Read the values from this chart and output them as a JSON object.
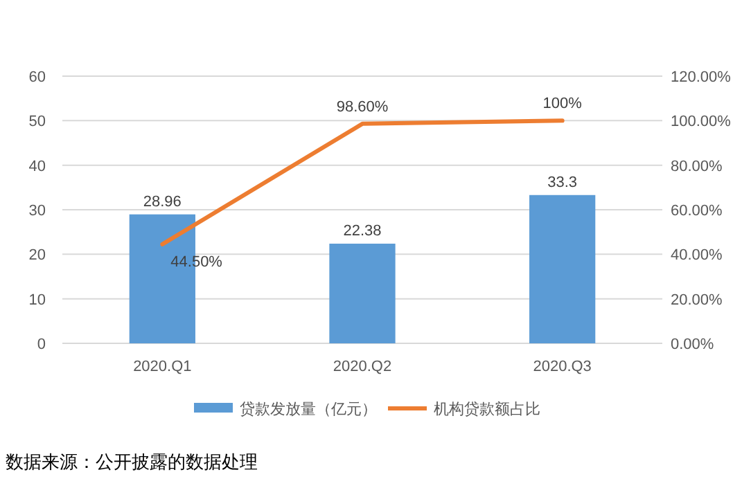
{
  "chart_data": {
    "type": "bar",
    "categories": [
      "2020.Q1",
      "2020.Q2",
      "2020.Q3"
    ],
    "series": [
      {
        "name": "贷款发放量（亿元）",
        "color": "#5b9bd5",
        "values": [
          28.96,
          22.38,
          33.3
        ],
        "value_labels": [
          "28.96",
          "22.38",
          "33.3"
        ]
      },
      {
        "name": "机构贷款额占比",
        "type": "line",
        "axis": "y2",
        "color": "#ed7d31",
        "values": [
          44.5,
          98.6,
          100
        ],
        "value_labels": [
          "44.50%",
          "98.60%",
          "100%"
        ]
      }
    ],
    "ylim": [
      0,
      60
    ],
    "yticks": [
      0,
      10,
      20,
      30,
      40,
      50,
      60
    ],
    "y2lim": [
      0,
      120
    ],
    "y2ticks": [
      {
        "value": 0,
        "label": "0.00%"
      },
      {
        "value": 20,
        "label": "20.00%"
      },
      {
        "value": 40,
        "label": "40.00%"
      },
      {
        "value": 60,
        "label": "60.00%"
      },
      {
        "value": 80,
        "label": "80.00%"
      },
      {
        "value": 100,
        "label": "100.00%"
      },
      {
        "value": 120,
        "label": "120.00%"
      }
    ],
    "grid": "y",
    "legend": "bottom",
    "marker": "none",
    "line_style": "solid",
    "annotations": [
      "数据来源：公开披露的数据处理"
    ]
  }
}
